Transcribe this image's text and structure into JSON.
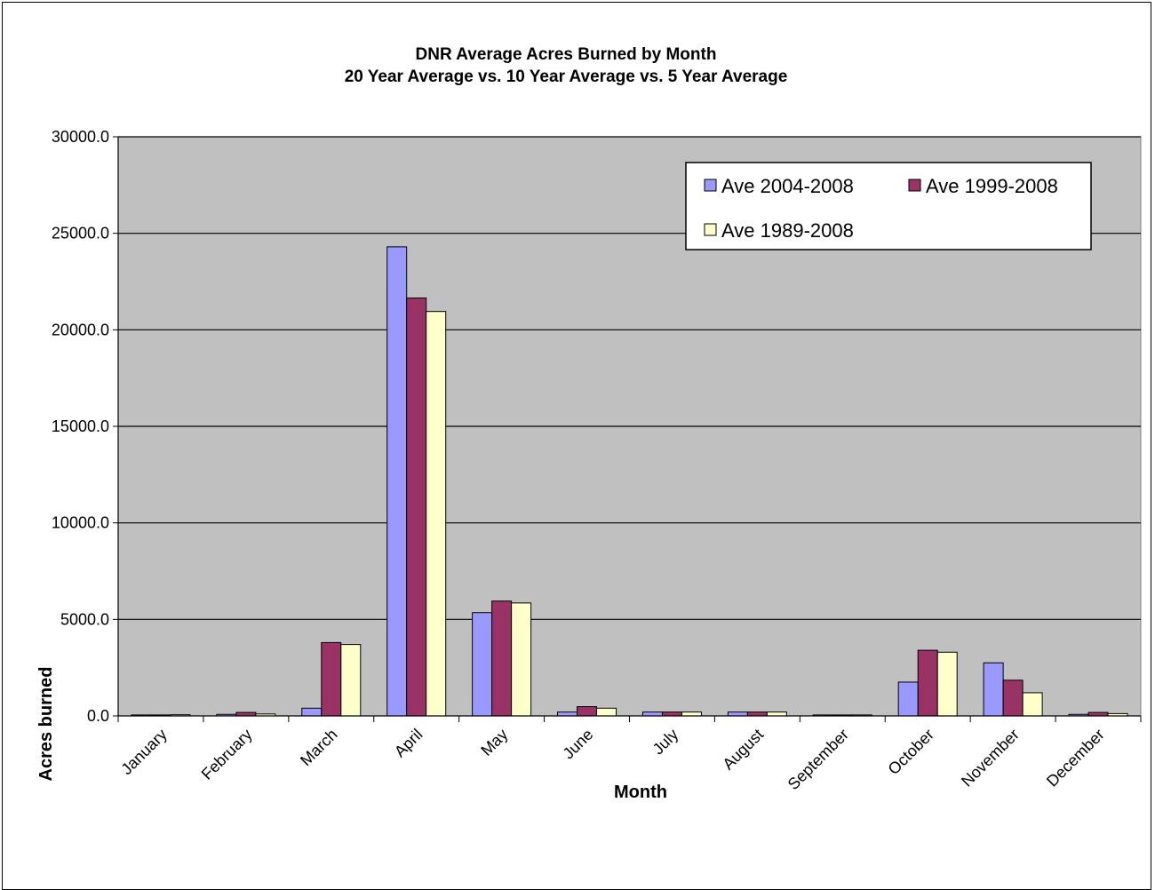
{
  "chart_data": {
    "type": "bar",
    "title": "DNR Average Acres Burned by Month",
    "subtitle": "20 Year Average vs. 10 Year Average vs. 5 Year Average",
    "xlabel": "Month",
    "ylabel": "Acres burned",
    "ylim": [
      0,
      30000
    ],
    "yticks": [
      "0.0",
      "5000.0",
      "10000.0",
      "15000.0",
      "20000.0",
      "25000.0",
      "30000.0"
    ],
    "grid": true,
    "legend_position": "top-right",
    "categories": [
      "January",
      "February",
      "March",
      "April",
      "May",
      "June",
      "July",
      "August",
      "September",
      "October",
      "November",
      "December"
    ],
    "series": [
      {
        "name": "Ave 2004-2008",
        "color": "#9999ff",
        "values": [
          50,
          80,
          400,
          24300,
          5350,
          200,
          200,
          200,
          50,
          1750,
          2750,
          80
        ]
      },
      {
        "name": "Ave 1999-2008",
        "color": "#993366",
        "values": [
          50,
          180,
          3800,
          21650,
          5950,
          480,
          200,
          200,
          50,
          3400,
          1850,
          180
        ]
      },
      {
        "name": "Ave 1989-2008",
        "color": "#ffffcc",
        "values": [
          60,
          100,
          3700,
          20950,
          5850,
          400,
          200,
          200,
          50,
          3300,
          1200,
          120
        ]
      }
    ],
    "plot_background": "#c0c0c0"
  }
}
